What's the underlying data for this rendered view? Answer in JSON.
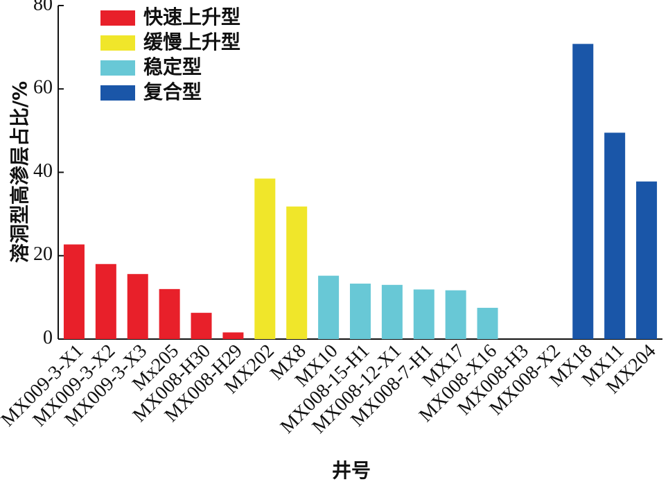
{
  "chart_data": {
    "type": "bar",
    "y_label": "溶洞型高渗层占比/%",
    "x_label": "井号",
    "categories": [
      "MX009-3-X1",
      "MX009-3-X2",
      "MX009-3-X3",
      "Mx205",
      "MX008-H30",
      "MX008-H29",
      "MX202",
      "MX8",
      "MX10",
      "MX008-15-H1",
      "MX008-12-X1",
      "MX008-7-H1",
      "MX17",
      "MX008-X16",
      "MX008-H3",
      "MX008-X2",
      "MX18",
      "MX11",
      "MX204"
    ],
    "series": [
      {
        "name": "快速上升型",
        "color": "#e8202a",
        "values": [
          22.7,
          18,
          15.6,
          12,
          6.3,
          1.6,
          null,
          null,
          null,
          null,
          null,
          null,
          null,
          null,
          null,
          null,
          null,
          null,
          null
        ]
      },
      {
        "name": "缓慢上升型",
        "color": "#f0e62a",
        "values": [
          null,
          null,
          null,
          null,
          null,
          null,
          38.5,
          31.8,
          null,
          null,
          null,
          null,
          null,
          null,
          null,
          null,
          null,
          null,
          null
        ]
      },
      {
        "name": "稳定型",
        "color": "#68c8d6",
        "values": [
          null,
          null,
          null,
          null,
          null,
          null,
          null,
          null,
          15.2,
          13.3,
          13,
          11.9,
          11.7,
          7.5,
          null,
          null,
          null,
          null,
          null
        ]
      },
      {
        "name": "复合型",
        "color": "#1a56a8",
        "values": [
          null,
          null,
          null,
          null,
          null,
          null,
          null,
          null,
          null,
          null,
          null,
          null,
          null,
          null,
          null,
          null,
          70.8,
          49.5,
          37.8
        ]
      }
    ],
    "ylim": [
      0,
      80
    ],
    "yticks": [
      0,
      20,
      40,
      60,
      80
    ]
  }
}
